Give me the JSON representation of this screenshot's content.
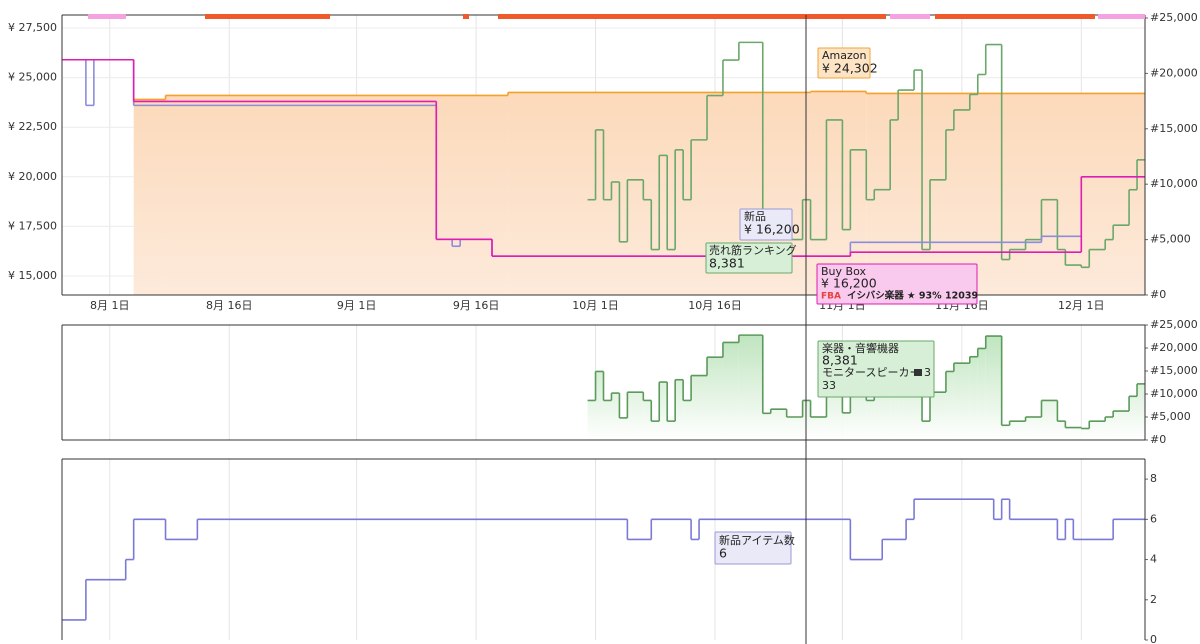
{
  "chart_data": [
    {
      "type": "line",
      "step": true,
      "grid": true,
      "xlim": [
        "07-26",
        "12-09"
      ],
      "xticks": [
        {
          "value": "08-01",
          "label": "8月 1日"
        },
        {
          "value": "08-16",
          "label": "8月 16日"
        },
        {
          "value": "09-01",
          "label": "9月 1日"
        },
        {
          "value": "09-16",
          "label": "9月 16日"
        },
        {
          "value": "10-01",
          "label": "10月 1日"
        },
        {
          "value": "10-16",
          "label": "10月 16日"
        },
        {
          "value": "11-01",
          "label": "11月 1日"
        },
        {
          "value": "11-16",
          "label": "11月 16日"
        },
        {
          "value": "12-01",
          "label": "12月 1日"
        }
      ],
      "ylim": [
        14042,
        28155
      ],
      "yticks": [
        {
          "value": 15000,
          "label": "¥ 15,000"
        },
        {
          "value": 17500,
          "label": "¥ 17,500"
        },
        {
          "value": 20000,
          "label": "¥ 20,000"
        },
        {
          "value": 22500,
          "label": "¥ 22,500"
        },
        {
          "value": 25000,
          "label": "¥ 25,000"
        },
        {
          "value": 27500,
          "label": "¥ 27,500"
        }
      ],
      "y2lim": [
        0,
        25270
      ],
      "y2ticks": [
        {
          "value": 0,
          "label": "#0"
        },
        {
          "value": 5000,
          "label": "#5,000"
        },
        {
          "value": 10000,
          "label": "#10,000"
        },
        {
          "value": 15000,
          "label": "#15,000"
        },
        {
          "value": 20000,
          "label": "#20,000"
        },
        {
          "value": 25000,
          "label": "#25,000"
        }
      ],
      "series": [
        {
          "name": "Amazon",
          "color": "#f3a02c",
          "area": true,
          "x": [
            "08-04",
            "08-08",
            "09-20",
            "10-28",
            "11-04"
          ],
          "values": [
            23900,
            24100,
            24250,
            24302,
            24200
          ],
          "tooltip_lines": [
            "¥ 24,302"
          ]
        },
        {
          "name": "新品",
          "color": "#8c8cdc",
          "x": [
            "07-26",
            "07-29",
            "07-30",
            "08-04",
            "09-11",
            "09-13",
            "09-14",
            "09-18",
            "11-02",
            "11-26",
            "12-01"
          ],
          "values": [
            25900,
            23600,
            25900,
            23600,
            16850,
            16500,
            16850,
            16000,
            16700,
            17000,
            null
          ],
          "tooltip_lines": [
            "¥ 16,200"
          ]
        },
        {
          "name": "Buy Box",
          "color": "#e01cb4",
          "x": [
            "07-26",
            "08-04",
            "09-11",
            "09-18",
            "11-02",
            "12-01"
          ],
          "values": [
            25900,
            23800,
            16850,
            16000,
            16200,
            20000
          ],
          "tooltip_lines": [
            "¥ 16,200",
            "FBA",
            "イシバシ楽器 ★ 93%",
            "12039"
          ]
        },
        {
          "name": "売れ筋ランキング",
          "color": "#6aa86a",
          "axis": "y2",
          "x": [
            "09-30",
            "10-01",
            "10-02",
            "10-03",
            "10-04",
            "10-05",
            "10-07",
            "10-08",
            "10-09",
            "10-10",
            "10-11",
            "10-12",
            "10-13",
            "10-15",
            "10-17",
            "10-19",
            "10-22",
            "10-23",
            "10-25",
            "10-27",
            "10-28",
            "10-30",
            "11-01",
            "11-02",
            "11-04",
            "11-05",
            "11-07",
            "11-08",
            "11-10",
            "11-11",
            "11-12",
            "11-14",
            "11-15",
            "11-17",
            "11-18",
            "11-19",
            "11-21",
            "11-22",
            "11-24",
            "11-26",
            "11-28",
            "11-29",
            "12-01",
            "12-02",
            "12-04",
            "12-05",
            "12-07",
            "12-08"
          ],
          "values": [
            8600,
            14900,
            8600,
            10200,
            4800,
            10400,
            8600,
            4100,
            12600,
            4100,
            13100,
            8600,
            14000,
            18000,
            21200,
            22800,
            5800,
            6700,
            5000,
            8600,
            5000,
            15800,
            5900,
            13100,
            8600,
            9500,
            15800,
            18500,
            20300,
            4100,
            10400,
            14900,
            16700,
            18100,
            19900,
            22600,
            3200,
            4100,
            5000,
            8600,
            4100,
            2700,
            2500,
            4100,
            5000,
            6300,
            9500,
            12200
          ],
          "tooltip_lines": [
            "8,381"
          ]
        }
      ]
    },
    {
      "type": "line",
      "step": true,
      "grid": true,
      "yaxis_side": "right",
      "xlim": [
        "07-26",
        "12-09"
      ],
      "xticks": [
        "08-01",
        "08-16",
        "09-01",
        "09-16",
        "10-01",
        "10-16",
        "11-01",
        "11-16",
        "12-01"
      ],
      "ylim": [
        0,
        25000
      ],
      "yticks": [
        {
          "value": 0,
          "label": "#0"
        },
        {
          "value": 5000,
          "label": "#5,000"
        },
        {
          "value": 10000,
          "label": "#10,000"
        },
        {
          "value": 15000,
          "label": "#15,000"
        },
        {
          "value": 20000,
          "label": "#20,000"
        },
        {
          "value": 25000,
          "label": "#25,000"
        }
      ],
      "series": [
        {
          "name": "楽器・音響機器",
          "color": "#5a9a5a",
          "area": true,
          "x": [
            "09-30",
            "10-01",
            "10-02",
            "10-03",
            "10-04",
            "10-05",
            "10-07",
            "10-08",
            "10-09",
            "10-10",
            "10-11",
            "10-12",
            "10-13",
            "10-15",
            "10-17",
            "10-19",
            "10-22",
            "10-23",
            "10-25",
            "10-27",
            "10-28",
            "10-30",
            "11-01",
            "11-02",
            "11-04",
            "11-05",
            "11-07",
            "11-08",
            "11-10",
            "11-11",
            "11-12",
            "11-14",
            "11-15",
            "11-17",
            "11-18",
            "11-19",
            "11-21",
            "11-22",
            "11-24",
            "11-26",
            "11-28",
            "11-29",
            "12-01",
            "12-02",
            "12-04",
            "12-05",
            "12-07",
            "12-08"
          ],
          "values": [
            8600,
            14900,
            8600,
            10200,
            4800,
            10400,
            8600,
            4100,
            12600,
            4100,
            13100,
            8600,
            14000,
            18000,
            21200,
            22800,
            5800,
            6700,
            5000,
            8600,
            5000,
            15800,
            5900,
            13100,
            8600,
            9500,
            15800,
            18500,
            20300,
            4100,
            10400,
            14900,
            16700,
            18100,
            19900,
            22600,
            3200,
            4100,
            5000,
            8600,
            4100,
            2700,
            2500,
            4100,
            5000,
            6300,
            9500,
            12200
          ],
          "tooltip_lines": [
            "8,381",
            "モニタースピーカー",
            "3",
            "33"
          ]
        }
      ]
    },
    {
      "type": "line",
      "step": true,
      "grid": true,
      "yaxis_side": "right",
      "xlim": [
        "07-26",
        "12-09"
      ],
      "xticks": [
        "08-01",
        "08-16",
        "09-01",
        "09-16",
        "10-01",
        "10-16",
        "11-01",
        "11-16",
        "12-01"
      ],
      "ylim": [
        0,
        9
      ],
      "yticks": [
        0,
        2,
        4,
        6,
        8
      ],
      "series": [
        {
          "name": "新品アイテム数",
          "color": "#7a7ad6",
          "x": [
            "07-26",
            "07-29",
            "08-03",
            "08-04",
            "08-08",
            "08-12",
            "10-05",
            "10-08",
            "10-13",
            "10-14",
            "11-02",
            "11-06",
            "11-09",
            "11-10",
            "11-20",
            "11-21",
            "11-22",
            "11-28",
            "11-29",
            "11-30",
            "12-05"
          ],
          "values": [
            1,
            3,
            4,
            6,
            5,
            6,
            5,
            6,
            5,
            6,
            4,
            5,
            6,
            7,
            6,
            7,
            6,
            5,
            6,
            5,
            6
          ],
          "tooltip_lines": [
            "6"
          ]
        }
      ]
    }
  ]
}
